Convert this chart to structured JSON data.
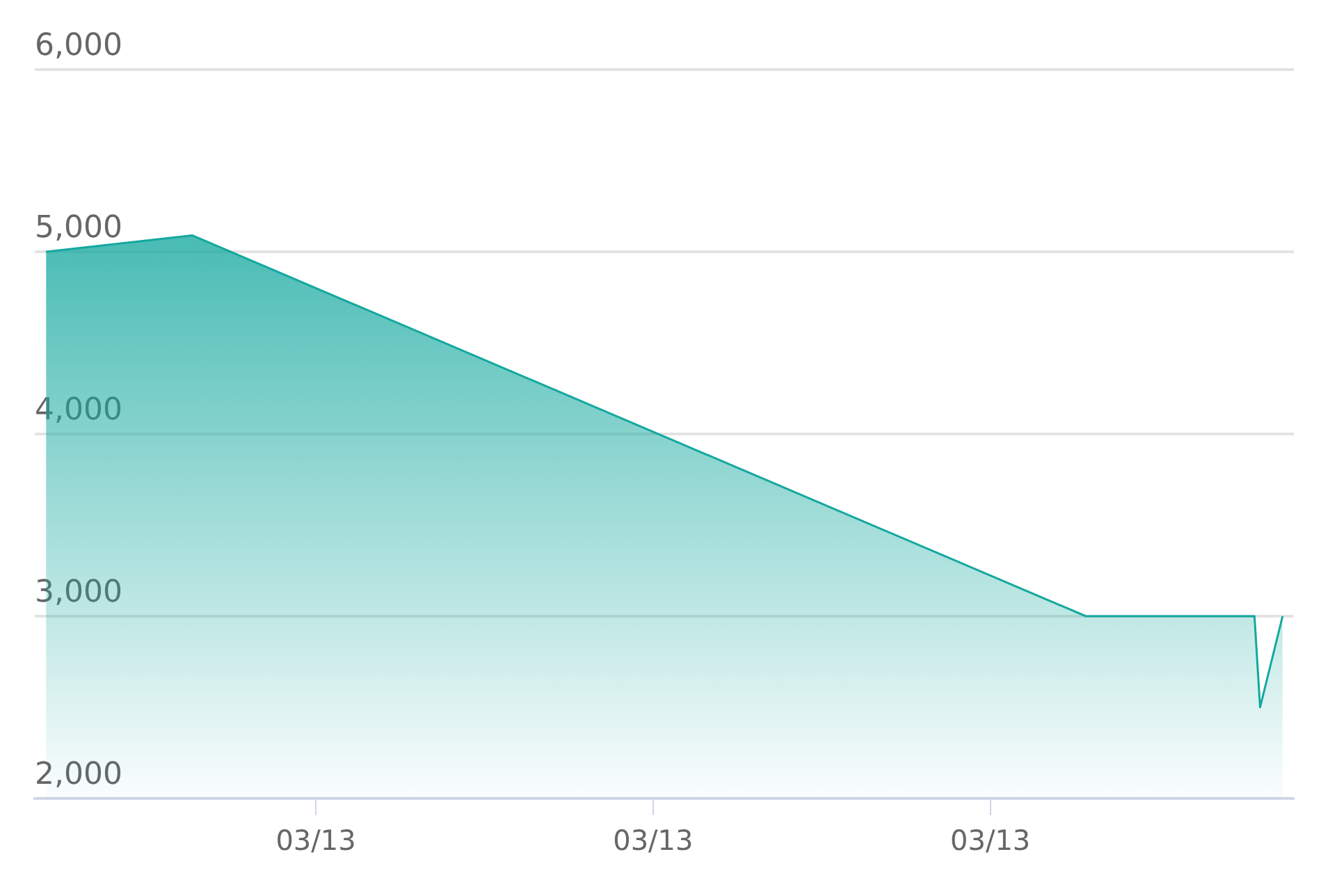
{
  "chart_data": {
    "type": "area",
    "x": [
      "--03-13T00:12",
      "--03-13T00:38",
      "--03-13T03:17",
      "--03-13T03:47",
      "--03-13T03:48",
      "--03-13T03:52"
    ],
    "series": [
      {
        "color": "#13a89e",
        "values": [
          5000,
          5090,
          3000,
          3000,
          2500,
          3000
        ]
      }
    ],
    "xlim": [
      "--03-13T00:10",
      "--03-13T03:54"
    ],
    "xticks": [
      {
        "value": "--03-13T01:00",
        "label": "03/13"
      },
      {
        "value": "--03-13T02:00",
        "label": "03/13"
      },
      {
        "value": "--03-13T03:00",
        "label": "03/13"
      }
    ],
    "ylim": [
      2000,
      6000
    ],
    "yticks": [
      {
        "value": 2000,
        "label": "2,000"
      },
      {
        "value": 3000,
        "label": "3,000"
      },
      {
        "value": 4000,
        "label": "4,000"
      },
      {
        "value": 5000,
        "label": "5,000"
      },
      {
        "value": 6000,
        "label": "6,000"
      }
    ],
    "grid": "y",
    "legend": false,
    "marker": "none",
    "line_style": "solid"
  }
}
